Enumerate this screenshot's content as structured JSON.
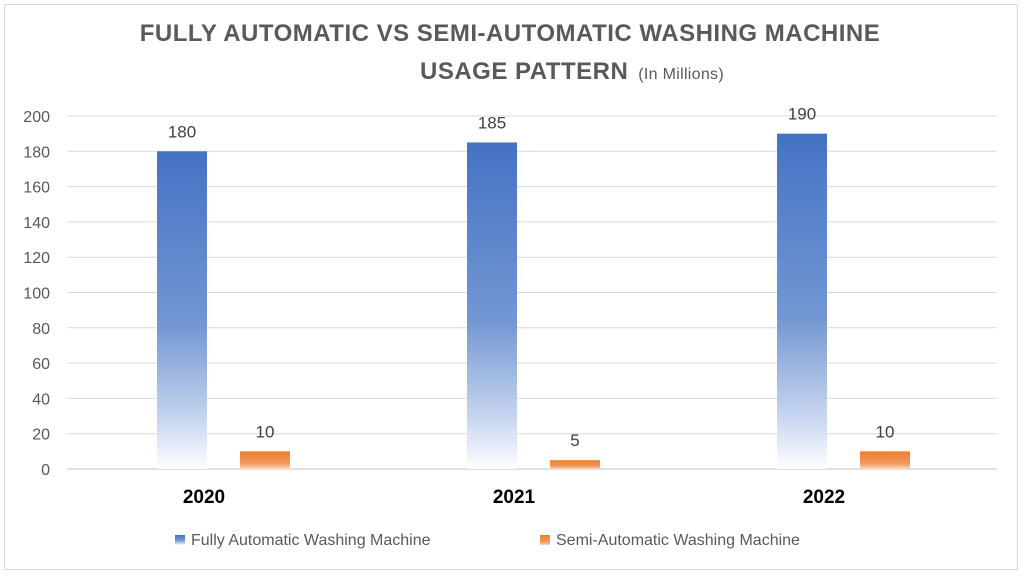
{
  "chart_data": {
    "type": "bar",
    "title": "FULLY AUTOMATIC VS SEMI-AUTOMATIC WASHING MACHINE",
    "title_line2": "USAGE PATTERN",
    "subtitle": "(In Millions)",
    "categories": [
      "2020",
      "2021",
      "2022"
    ],
    "series": [
      {
        "name": "Fully Automatic Washing Machine",
        "values": [
          180,
          185,
          190
        ],
        "color": "#4472c4"
      },
      {
        "name": "Semi-Automatic Washing Machine",
        "values": [
          10,
          5,
          10
        ],
        "color": "#ed7d31"
      }
    ],
    "ylim": [
      0,
      200
    ],
    "yticks": [
      0,
      20,
      40,
      60,
      80,
      100,
      120,
      140,
      160,
      180,
      200
    ],
    "grid": true,
    "legend": "bottom",
    "data_labels": true
  }
}
